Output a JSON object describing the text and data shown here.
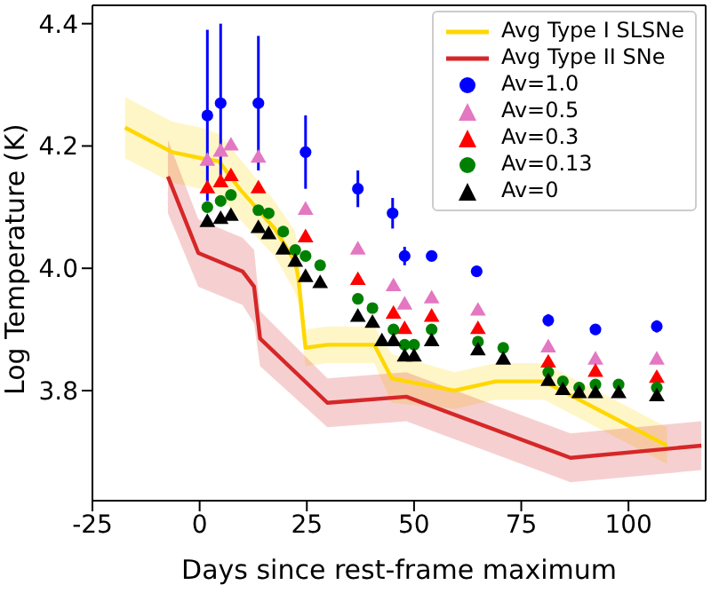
{
  "chart_data": {
    "type": "scatter",
    "xlabel": "Days since rest-frame maximum",
    "ylabel": "Log Temperature (K)",
    "xlim": [
      -25,
      118
    ],
    "ylim": [
      3.62,
      4.43
    ],
    "xticks": [
      -25,
      0,
      25,
      50,
      75,
      100
    ],
    "yticks": [
      {
        "value": 3.8,
        "label": "3.8"
      },
      {
        "value": 4.0,
        "label": "4.0"
      },
      {
        "value": 4.2,
        "label": "4.2"
      },
      {
        "value": 4.4,
        "label": "4.4"
      }
    ],
    "grid": false,
    "legend": "top right",
    "series": [
      {
        "name": "Avg Type I SLSNe",
        "type": "line",
        "color": "#ffd700",
        "x": [
          -17.4,
          -6.4,
          0.4,
          4.5,
          9.3,
          17.5,
          22.3,
          23,
          24.7,
          29.8,
          40.7,
          44.8,
          59.4,
          69,
          80.3,
          109
        ],
        "values": [
          4.23,
          4.19,
          4.18,
          4.175,
          4.13,
          4.065,
          4.01,
          3.985,
          3.87,
          3.875,
          3.875,
          3.82,
          3.8,
          3.815,
          3.815,
          3.71
        ],
        "lower": [
          4.18,
          4.14,
          4.13,
          4.12,
          4.08,
          4.02,
          3.96,
          3.94,
          3.84,
          3.845,
          3.845,
          3.78,
          3.77,
          3.785,
          3.785,
          3.68
        ],
        "upper": [
          4.28,
          4.24,
          4.23,
          4.22,
          4.18,
          4.11,
          4.06,
          4.03,
          3.9,
          3.905,
          3.905,
          3.86,
          3.83,
          3.845,
          3.845,
          3.74
        ]
      },
      {
        "name": "Avg Type II SNe",
        "type": "line",
        "color": "#d62728",
        "x": [
          -7.4,
          -0.3,
          10,
          12.7,
          14.1,
          29.8,
          48.2,
          86.5,
          117
        ],
        "values": [
          4.15,
          4.025,
          3.995,
          3.97,
          3.885,
          3.78,
          3.79,
          3.69,
          3.71
        ],
        "lower": [
          4.09,
          3.97,
          3.94,
          3.91,
          3.84,
          3.74,
          3.75,
          3.65,
          3.67
        ],
        "upper": [
          4.21,
          4.08,
          4.05,
          4.03,
          3.93,
          3.82,
          3.83,
          3.73,
          3.75
        ]
      },
      {
        "name": "Av=1.0",
        "marker": "circle",
        "color": "#0000ff",
        "x": [
          1.8,
          4.9,
          13.7,
          24.7,
          36.9,
          45,
          47.8,
          54.1,
          64.6,
          81.3,
          92.3,
          106.6
        ],
        "values": [
          4.25,
          4.27,
          4.27,
          4.19,
          4.13,
          4.09,
          4.02,
          4.02,
          3.995,
          3.915,
          3.9,
          3.905
        ],
        "errors": [
          0.14,
          0.13,
          0.11,
          0.06,
          0.03,
          0.025,
          0.015,
          null,
          null,
          0.01,
          null,
          0.01
        ]
      },
      {
        "name": "Av=0.5",
        "marker": "triangle",
        "color": "#e377c2",
        "x": [
          1.8,
          4.9,
          7.3,
          13.7,
          24.7,
          36.9,
          45.2,
          47.8,
          54.1,
          64.9,
          81.3,
          92.3,
          106.6
        ],
        "values": [
          4.175,
          4.19,
          4.2,
          4.18,
          4.095,
          4.03,
          3.97,
          3.94,
          3.95,
          3.93,
          3.87,
          3.85,
          3.85
        ]
      },
      {
        "name": "Av=0.3",
        "marker": "triangle",
        "color": "#ff0000",
        "x": [
          1.8,
          4.9,
          7.3,
          13.7,
          24.7,
          36.9,
          45.2,
          47.8,
          54.1,
          64.9,
          81.3,
          92.3,
          106.6
        ],
        "values": [
          4.13,
          4.14,
          4.15,
          4.13,
          4.05,
          3.98,
          3.925,
          3.9,
          3.92,
          3.9,
          3.845,
          3.83,
          3.82
        ]
      },
      {
        "name": "Av=0.13",
        "marker": "circle",
        "color": "#008000",
        "x": [
          1.8,
          4.9,
          7.3,
          13.7,
          16.1,
          19.5,
          22.3,
          24.7,
          28.1,
          36.9,
          40.3,
          45.2,
          47.8,
          50,
          54.1,
          64.9,
          70.8,
          81.3,
          84.7,
          88.5,
          92.3,
          97.7,
          106.6
        ],
        "values": [
          4.1,
          4.11,
          4.12,
          4.095,
          4.09,
          4.06,
          4.03,
          4.02,
          4.005,
          3.95,
          3.935,
          3.9,
          3.875,
          3.875,
          3.9,
          3.88,
          3.87,
          3.83,
          3.815,
          3.805,
          3.81,
          3.81,
          3.805
        ]
      },
      {
        "name": "Av=0",
        "marker": "triangle",
        "color": "#000000",
        "x": [
          1.8,
          4.9,
          7.3,
          13.7,
          16.1,
          19.5,
          22.3,
          24.7,
          28.1,
          36.9,
          40.3,
          42.5,
          45.2,
          47.8,
          50,
          54.1,
          64.9,
          70.8,
          81.3,
          84.7,
          88.5,
          92.3,
          97.7,
          106.6
        ],
        "values": [
          4.075,
          4.08,
          4.085,
          4.065,
          4.055,
          4.03,
          4.01,
          3.985,
          3.975,
          3.92,
          3.91,
          3.88,
          3.88,
          3.855,
          3.855,
          3.88,
          3.865,
          3.85,
          3.815,
          3.8,
          3.795,
          3.795,
          3.795,
          3.79
        ]
      }
    ]
  }
}
